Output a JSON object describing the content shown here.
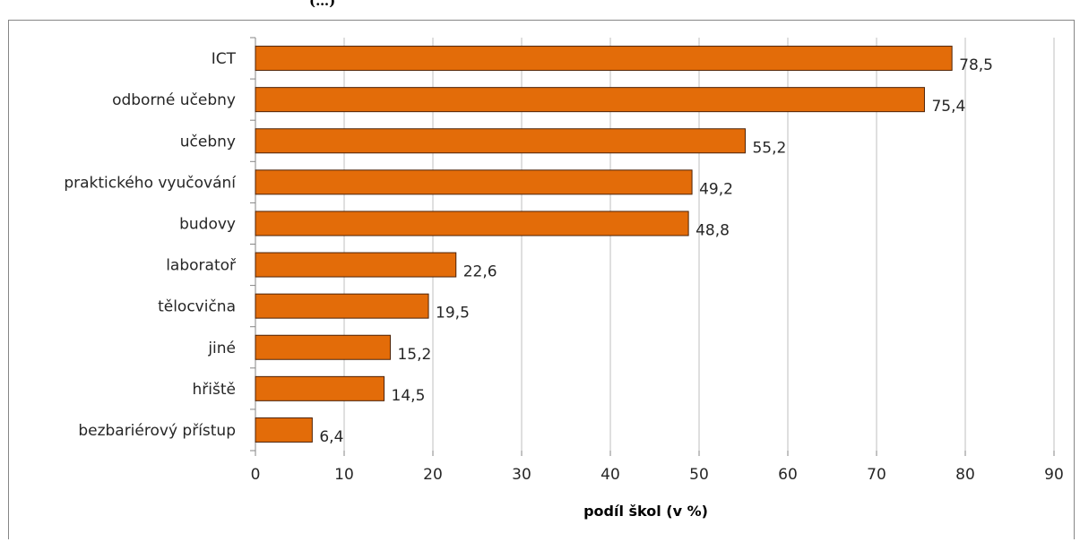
{
  "chart_data": {
    "type": "bar",
    "orientation": "horizontal",
    "title": "",
    "xlabel": "podíl škol (v %)",
    "ylabel": "",
    "categories": [
      "ICT",
      "odborné učebny",
      "učebny",
      "praktického vyučování",
      "budovy",
      "laboratoř",
      "tělocvična",
      "jiné",
      "hřiště",
      "bezbariérový přístup"
    ],
    "values": [
      78.5,
      75.4,
      55.2,
      49.2,
      48.8,
      22.6,
      19.5,
      15.2,
      14.5,
      6.4
    ],
    "data_labels": [
      "78,5",
      "75,4",
      "55,2",
      "49,2",
      "48,8",
      "22,6",
      "19,5",
      "15,2",
      "14,5",
      "6,4"
    ],
    "xlim": [
      0,
      90
    ],
    "xticks": [
      0,
      10,
      20,
      30,
      40,
      50,
      60,
      70,
      80,
      90
    ],
    "grid": true,
    "legend": "none",
    "bar_color": "#E36C09",
    "bar_edge_color": "#4D2206",
    "grid_color": "#BFBFBF"
  },
  "page": {
    "partial_title": "(…)"
  }
}
